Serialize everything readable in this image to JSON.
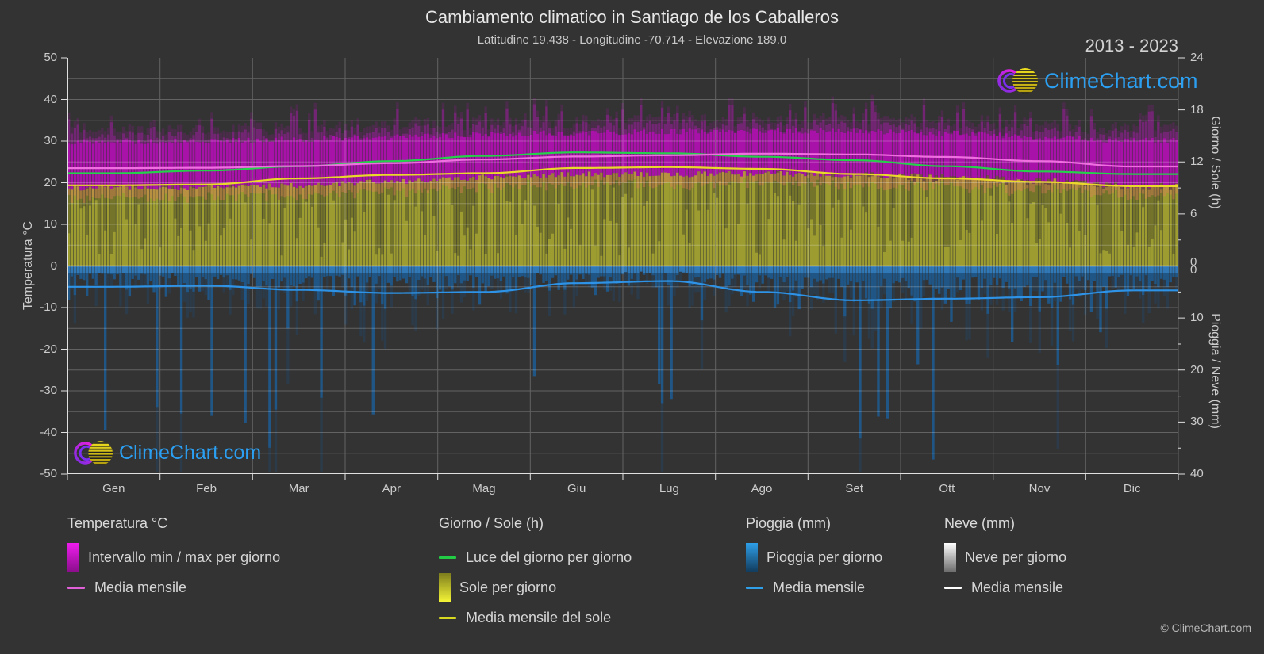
{
  "title": "Cambiamento climatico in Santiago de los Caballeros",
  "subtitle": "Latitudine 19.438 - Longitudine -70.714 - Elevazione 189.0",
  "period": "2013 - 2023",
  "watermark": "ClimeChart.com",
  "copyright": "© ClimeChart.com",
  "axes": {
    "left": {
      "label": "Temperatura °C",
      "range": [
        -50,
        50
      ],
      "ticks": [
        50,
        40,
        30,
        20,
        10,
        0,
        -10,
        -20,
        -30,
        -40,
        -50
      ]
    },
    "right_top": {
      "label": "Giorno / Sole (h)",
      "range": [
        0,
        24
      ],
      "ticks": [
        24,
        18,
        12,
        6,
        0
      ]
    },
    "right_bottom": {
      "label": "Pioggia / Neve (mm)",
      "range": [
        0,
        40
      ],
      "ticks": [
        0,
        10,
        20,
        30,
        40
      ]
    },
    "x": {
      "months": [
        "Gen",
        "Feb",
        "Mar",
        "Apr",
        "Mag",
        "Giu",
        "Lug",
        "Ago",
        "Set",
        "Ott",
        "Nov",
        "Dic"
      ]
    }
  },
  "chart_data": {
    "type": "area",
    "description": "Composite climate chart: daily temperature min/max band, daylight hours, sunshine hours, daily rain; monthly mean lines. Top half maps 0-24 h onto 0-50 °C; bottom half maps 0-40 mm (downward) onto 0 to -50 °C.",
    "categories": [
      "Gen",
      "Feb",
      "Mar",
      "Apr",
      "Mag",
      "Giu",
      "Lug",
      "Ago",
      "Set",
      "Ott",
      "Nov",
      "Dic"
    ],
    "series": [
      {
        "name": "Luce del giorno per giorno",
        "unit": "h",
        "color": "#25d04a",
        "values": [
          10.7,
          11.0,
          11.5,
          12.1,
          12.7,
          13.1,
          13.0,
          12.6,
          12.2,
          11.5,
          10.9,
          10.6
        ]
      },
      {
        "name": "Media mensile (temperatura)",
        "unit": "°C",
        "color": "#ef6fe0",
        "values": [
          23.5,
          23.6,
          24.0,
          24.7,
          25.6,
          26.3,
          26.6,
          27.0,
          26.8,
          26.2,
          25.2,
          23.9
        ]
      },
      {
        "name": "Intervallo min / max per giorno (max)",
        "unit": "°C",
        "color": "#a912a9",
        "values": [
          29.8,
          30.0,
          30.5,
          31.0,
          31.6,
          32.0,
          32.3,
          32.5,
          32.4,
          32.0,
          31.0,
          30.2
        ]
      },
      {
        "name": "Intervallo min / max per giorno (min)",
        "unit": "°C",
        "color": "#a912a9",
        "values": [
          18.8,
          18.8,
          19.3,
          20.3,
          21.3,
          22.0,
          22.0,
          22.2,
          22.0,
          21.5,
          20.5,
          19.3
        ]
      },
      {
        "name": "Sole per giorno / Media mensile del sole",
        "unit": "h",
        "color": "#ead82a",
        "values": [
          9.3,
          9.4,
          10.1,
          10.5,
          10.7,
          11.3,
          11.4,
          11.2,
          10.6,
          10.1,
          9.7,
          9.2
        ]
      },
      {
        "name": "Pioggia - Media mensile",
        "unit": "mm/giorno",
        "color": "#2e93e6",
        "values": [
          4.0,
          3.8,
          4.6,
          5.2,
          5.0,
          3.3,
          2.9,
          5.0,
          6.6,
          6.3,
          6.0,
          4.7
        ]
      },
      {
        "name": "Neve per giorno",
        "unit": "mm/giorno",
        "color": "#ffffff",
        "values": [
          0,
          0,
          0,
          0,
          0,
          0,
          0,
          0,
          0,
          0,
          0,
          0
        ]
      }
    ],
    "ylim_temp": [
      -50,
      50
    ],
    "ylim_sun_h": [
      0,
      24
    ],
    "ylim_precip_mm": [
      0,
      40
    ],
    "grid": "on",
    "legend_position": "bottom"
  },
  "legend": {
    "groups": [
      {
        "title": "Temperatura °C",
        "items": [
          {
            "label": "Intervallo min / max per giorno"
          },
          {
            "label": "Media mensile"
          }
        ]
      },
      {
        "title": "Giorno / Sole (h)",
        "items": [
          {
            "label": "Luce del giorno per giorno"
          },
          {
            "label": "Sole per giorno"
          },
          {
            "label": "Media mensile del sole"
          }
        ]
      },
      {
        "title": "Pioggia (mm)",
        "items": [
          {
            "label": "Pioggia per giorno"
          },
          {
            "label": "Media mensile"
          }
        ]
      },
      {
        "title": "Neve (mm)",
        "items": [
          {
            "label": "Neve per giorno"
          },
          {
            "label": "Media mensile"
          }
        ]
      }
    ]
  },
  "colors": {
    "background": "#333333",
    "grid": "rgba(255,255,255,0.24)",
    "zero_line": "rgba(255,255,255,0.55)",
    "spine": "#e0e0e0",
    "temp_band": "#a912a9",
    "temp_band_fuzz": "rgba(178,24,178,0.5)",
    "sun_area": "#9c9c31",
    "rain_bar": "rgba(26,96,158,0.78)",
    "daylight_line": "#25d04a",
    "temp_mean_line": "#ef6fe0",
    "sun_mean_line": "#ead82a",
    "rain_mean_line": "#2e93e6",
    "logo_blue": "#2b9ff2",
    "logo_magenta": "#e020e0",
    "logo_purple": "#7b2ff0",
    "logo_yellow": "#e8d518"
  }
}
